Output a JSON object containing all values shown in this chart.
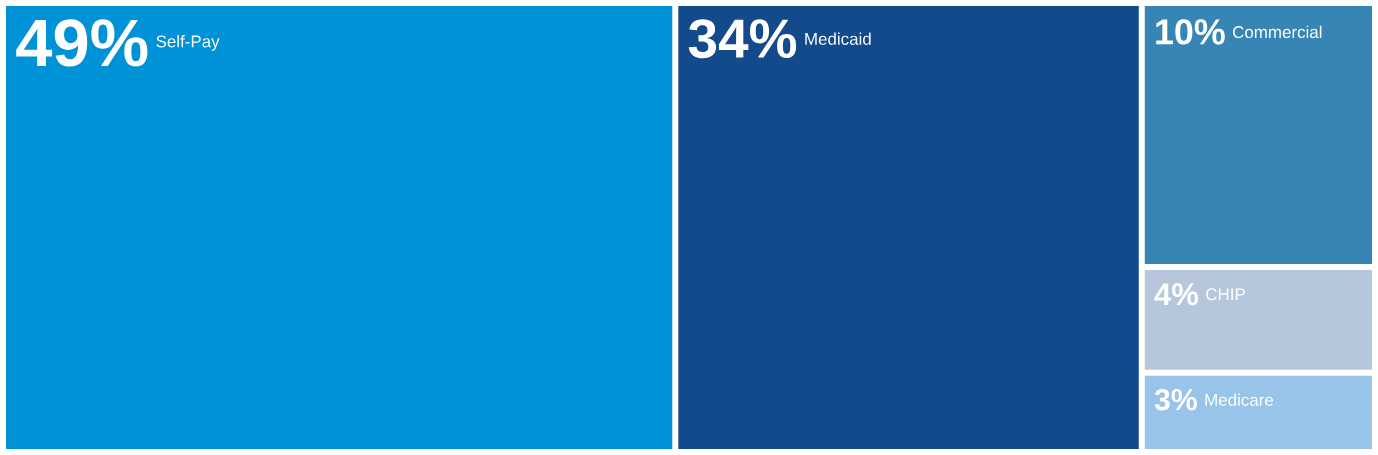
{
  "chart_data": {
    "type": "other",
    "categories": [
      "Self-Pay",
      "Medicaid",
      "Commercial",
      "CHIP",
      "Medicare"
    ],
    "values": [
      49,
      34,
      10,
      4,
      3
    ],
    "value_labels": [
      "49%",
      "34%",
      "10%",
      "4%",
      "3%"
    ],
    "colors": [
      "#0092d6",
      "#134a8b",
      "#3785b4",
      "#b6c7dc",
      "#97c4e8"
    ]
  }
}
